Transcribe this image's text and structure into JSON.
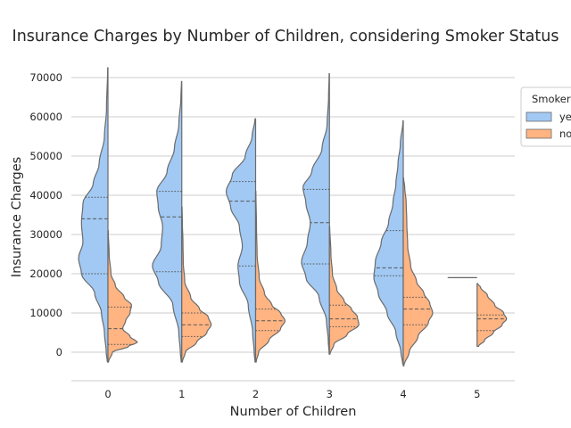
{
  "chart_data": {
    "type": "violin",
    "split": true,
    "title": "Insurance Charges by Number of Children, considering Smoker Status",
    "xlabel": "Number of Children",
    "ylabel": "Insurance Charges",
    "categories": [
      "0",
      "1",
      "2",
      "3",
      "4",
      "5"
    ],
    "ylim": [
      -7500,
      75000
    ],
    "yticks": [
      0,
      10000,
      20000,
      30000,
      40000,
      50000,
      60000,
      70000
    ],
    "grid": "horizontal",
    "inner": "quartile",
    "legend": {
      "title": "Smoker",
      "placement": "right",
      "entries": [
        "yes",
        "no"
      ]
    },
    "series": [
      {
        "name": "yes",
        "color": "#a1c9f4",
        "side": "left",
        "violins": [
          {
            "category": "0",
            "min": -2500,
            "max": 72500,
            "quartiles": [
              20000,
              34000,
              39500
            ],
            "profile": [
              [
                -2500,
                0.02
              ],
              [
                0,
                0.06
              ],
              [
                5000,
                0.12
              ],
              [
                10000,
                0.22
              ],
              [
                15000,
                0.45
              ],
              [
                20000,
                0.9
              ],
              [
                24000,
                1.0
              ],
              [
                28000,
                0.85
              ],
              [
                33000,
                0.9
              ],
              [
                38000,
                0.85
              ],
              [
                43000,
                0.5
              ],
              [
                48000,
                0.3
              ],
              [
                55000,
                0.12
              ],
              [
                62000,
                0.05
              ],
              [
                72500,
                0.01
              ]
            ]
          },
          {
            "category": "1",
            "min": -2500,
            "max": 69000,
            "quartiles": [
              20500,
              34500,
              41000
            ],
            "profile": [
              [
                -2500,
                0.02
              ],
              [
                0,
                0.05
              ],
              [
                5000,
                0.1
              ],
              [
                12000,
                0.3
              ],
              [
                18000,
                0.8
              ],
              [
                22000,
                1.0
              ],
              [
                27000,
                0.7
              ],
              [
                32000,
                0.65
              ],
              [
                37000,
                0.8
              ],
              [
                41000,
                0.85
              ],
              [
                46000,
                0.5
              ],
              [
                52000,
                0.25
              ],
              [
                58000,
                0.1
              ],
              [
                65000,
                0.03
              ],
              [
                69000,
                0.01
              ]
            ]
          },
          {
            "category": "2",
            "min": -2500,
            "max": 59500,
            "quartiles": [
              22000,
              38500,
              43500
            ],
            "profile": [
              [
                -2500,
                0.02
              ],
              [
                0,
                0.05
              ],
              [
                5000,
                0.1
              ],
              [
                12000,
                0.25
              ],
              [
                18000,
                0.55
              ],
              [
                22000,
                0.6
              ],
              [
                27000,
                0.45
              ],
              [
                32000,
                0.55
              ],
              [
                37000,
                0.85
              ],
              [
                41000,
                1.0
              ],
              [
                45000,
                0.8
              ],
              [
                50000,
                0.35
              ],
              [
                55000,
                0.12
              ],
              [
                59500,
                0.02
              ]
            ]
          },
          {
            "category": "3",
            "min": -500,
            "max": 71000,
            "quartiles": [
              22500,
              33000,
              41500
            ],
            "profile": [
              [
                -500,
                0.01
              ],
              [
                3000,
                0.04
              ],
              [
                8000,
                0.1
              ],
              [
                14000,
                0.35
              ],
              [
                19000,
                0.8
              ],
              [
                23000,
                0.95
              ],
              [
                28000,
                0.75
              ],
              [
                33000,
                0.65
              ],
              [
                38000,
                0.8
              ],
              [
                42000,
                0.9
              ],
              [
                46000,
                0.6
              ],
              [
                52000,
                0.25
              ],
              [
                58000,
                0.08
              ],
              [
                65000,
                0.03
              ],
              [
                71000,
                0.01
              ]
            ]
          },
          {
            "category": "4",
            "min": -3000,
            "max": 59000,
            "quartiles": [
              19500,
              21500,
              31000
            ],
            "profile": [
              [
                -3000,
                0.02
              ],
              [
                0,
                0.08
              ],
              [
                5000,
                0.25
              ],
              [
                10000,
                0.55
              ],
              [
                15000,
                0.85
              ],
              [
                19000,
                1.0
              ],
              [
                23000,
                0.95
              ],
              [
                28000,
                0.75
              ],
              [
                33000,
                0.5
              ],
              [
                38000,
                0.35
              ],
              [
                43000,
                0.25
              ],
              [
                48000,
                0.18
              ],
              [
                53000,
                0.1
              ],
              [
                59000,
                0.01
              ]
            ]
          },
          {
            "category": "5",
            "min": 19000,
            "max": 19000,
            "quartiles": [
              19000,
              19000,
              19000
            ],
            "profile": []
          }
        ]
      },
      {
        "name": "no",
        "color": "#ffb482",
        "side": "right",
        "violins": [
          {
            "category": "0",
            "min": -2500,
            "max": 31000,
            "quartiles": [
              2000,
              6000,
              11500
            ],
            "profile": [
              [
                -2500,
                0.02
              ],
              [
                0,
                0.15
              ],
              [
                1500,
                0.7
              ],
              [
                2500,
                1.0
              ],
              [
                4000,
                0.75
              ],
              [
                6000,
                0.5
              ],
              [
                8000,
                0.6
              ],
              [
                10000,
                0.75
              ],
              [
                12000,
                0.8
              ],
              [
                14000,
                0.55
              ],
              [
                17000,
                0.25
              ],
              [
                20000,
                0.1
              ],
              [
                25000,
                0.04
              ],
              [
                31000,
                0.01
              ]
            ]
          },
          {
            "category": "1",
            "min": -2500,
            "max": 37000,
            "quartiles": [
              4000,
              7000,
              10000
            ],
            "profile": [
              [
                -2500,
                0.02
              ],
              [
                0,
                0.12
              ],
              [
                2500,
                0.5
              ],
              [
                5000,
                0.85
              ],
              [
                7000,
                1.0
              ],
              [
                9000,
                0.9
              ],
              [
                11000,
                0.6
              ],
              [
                14000,
                0.3
              ],
              [
                18000,
                0.1
              ],
              [
                23000,
                0.05
              ],
              [
                28000,
                0.04
              ],
              [
                33000,
                0.02
              ],
              [
                37000,
                0.01
              ]
            ]
          },
          {
            "category": "2",
            "min": -2500,
            "max": 41000,
            "quartiles": [
              5500,
              8000,
              11000
            ],
            "profile": [
              [
                -2500,
                0.02
              ],
              [
                0,
                0.1
              ],
              [
                3000,
                0.45
              ],
              [
                6000,
                0.85
              ],
              [
                8000,
                1.0
              ],
              [
                10000,
                0.85
              ],
              [
                12000,
                0.55
              ],
              [
                15000,
                0.3
              ],
              [
                19000,
                0.12
              ],
              [
                25000,
                0.05
              ],
              [
                32000,
                0.03
              ],
              [
                41000,
                0.01
              ]
            ]
          },
          {
            "category": "3",
            "min": -500,
            "max": 32000,
            "quartiles": [
              6500,
              8500,
              12000
            ],
            "profile": [
              [
                -500,
                0.02
              ],
              [
                2000,
                0.15
              ],
              [
                4500,
                0.6
              ],
              [
                7000,
                1.0
              ],
              [
                9000,
                0.95
              ],
              [
                11000,
                0.75
              ],
              [
                13000,
                0.5
              ],
              [
                16000,
                0.25
              ],
              [
                20000,
                0.1
              ],
              [
                25000,
                0.05
              ],
              [
                32000,
                0.01
              ]
            ]
          },
          {
            "category": "4",
            "min": -3500,
            "max": 44500,
            "quartiles": [
              7000,
              11000,
              14000
            ],
            "profile": [
              [
                -3500,
                0.02
              ],
              [
                0,
                0.2
              ],
              [
                4000,
                0.5
              ],
              [
                7500,
                0.85
              ],
              [
                10000,
                1.0
              ],
              [
                12500,
                0.9
              ],
              [
                15000,
                0.7
              ],
              [
                18000,
                0.45
              ],
              [
                22000,
                0.25
              ],
              [
                27000,
                0.15
              ],
              [
                33000,
                0.12
              ],
              [
                38000,
                0.1
              ],
              [
                42000,
                0.05
              ],
              [
                44500,
                0.01
              ]
            ]
          },
          {
            "category": "5",
            "min": 1500,
            "max": 17500,
            "quartiles": [
              5500,
              8500,
              9500
            ],
            "profile": [
              [
                1500,
                0.05
              ],
              [
                3000,
                0.25
              ],
              [
                5000,
                0.55
              ],
              [
                7000,
                0.85
              ],
              [
                8500,
                1.0
              ],
              [
                10000,
                0.9
              ],
              [
                12000,
                0.6
              ],
              [
                14500,
                0.35
              ],
              [
                16500,
                0.12
              ],
              [
                17500,
                0.02
              ]
            ]
          }
        ]
      }
    ]
  }
}
